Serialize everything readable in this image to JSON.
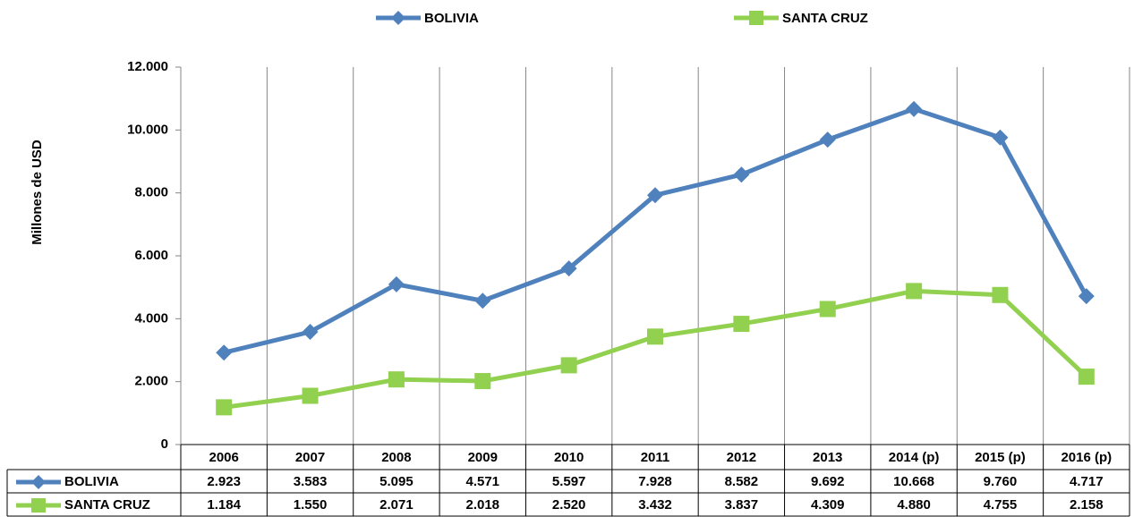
{
  "chart_data": {
    "type": "line",
    "y_label": "Millones de USD",
    "categories": [
      "2006",
      "2007",
      "2008",
      "2009",
      "2010",
      "2011",
      "2012",
      "2013",
      "2014 (p)",
      "2015 (p)",
      "2016 (p)"
    ],
    "series": [
      {
        "name": "BOLIVIA",
        "color": "#4f81bd",
        "marker": "diamond",
        "values": [
          2923,
          3583,
          5095,
          4571,
          5597,
          7928,
          8582,
          9692,
          10668,
          9760,
          4717
        ],
        "value_labels": [
          "2.923",
          "3.583",
          "5.095",
          "4.571",
          "5.597",
          "7.928",
          "8.582",
          "9.692",
          "10.668",
          "9.760",
          "4.717"
        ]
      },
      {
        "name": "SANTA CRUZ",
        "color": "#92d050",
        "marker": "square",
        "values": [
          1184,
          1550,
          2071,
          2018,
          2520,
          3432,
          3837,
          4309,
          4880,
          4755,
          2158
        ],
        "value_labels": [
          "1.184",
          "1.550",
          "2.071",
          "2.018",
          "2.520",
          "3.432",
          "3.837",
          "4.309",
          "4.880",
          "4.755",
          "2.158"
        ]
      }
    ],
    "ylim": [
      0,
      12000
    ],
    "yticks": [
      0,
      {
        "value": 2000,
        "label": "2.000"
      },
      {
        "value": 4000,
        "label": "4.000"
      },
      {
        "value": 6000,
        "label": "6.000"
      },
      {
        "value": 8000,
        "label": "8.000"
      },
      {
        "value": 10000,
        "label": "10.000"
      },
      {
        "value": 12000,
        "label": "12.000"
      }
    ],
    "grid": "vertical",
    "legend": "top"
  }
}
